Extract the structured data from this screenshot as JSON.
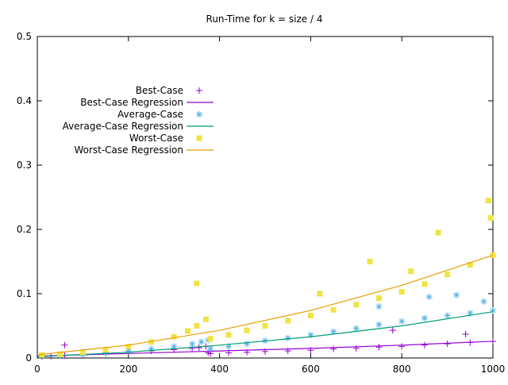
{
  "chart_data": {
    "type": "scatter",
    "title": "Run-Time for k = size / 4",
    "xlabel": "",
    "ylabel": "",
    "xlim": [
      0,
      1000
    ],
    "ylim": [
      0,
      0.5
    ],
    "x_ticks": [
      "0",
      "200",
      "400",
      "600",
      "800",
      "1000"
    ],
    "y_ticks": [
      "0",
      "0.1",
      "0.2",
      "0.3",
      "0.4",
      "0.5"
    ],
    "grid": false,
    "legend_position": "top-left",
    "series": [
      {
        "name": "Best-Case",
        "kind": "points",
        "marker": "plus",
        "color": "#9400d3",
        "x": [
          10,
          30,
          60,
          100,
          150,
          200,
          250,
          300,
          340,
          355,
          370,
          375,
          380,
          420,
          460,
          500,
          550,
          600,
          650,
          700,
          750,
          800,
          850,
          900,
          950,
          1000,
          60,
          780,
          940
        ],
        "y": [
          0.002,
          0.003,
          0.004,
          0.005,
          0.007,
          0.009,
          0.011,
          0.013,
          0.015,
          0.016,
          0.018,
          0.008,
          0.007,
          0.008,
          0.009,
          0.01,
          0.011,
          0.012,
          0.014,
          0.015,
          0.017,
          0.018,
          0.02,
          0.022,
          0.024,
          0.026,
          0.02,
          0.043,
          0.037
        ]
      },
      {
        "name": "Best-Case Regression",
        "kind": "line",
        "color": "#9400d3",
        "x": [
          0,
          200,
          400,
          600,
          800,
          1000
        ],
        "y": [
          0.003,
          0.007,
          0.011,
          0.015,
          0.02,
          0.026
        ]
      },
      {
        "name": "Average-Case",
        "kind": "points",
        "marker": "star",
        "color": "#56b4e9",
        "x": [
          10,
          50,
          100,
          150,
          200,
          250,
          300,
          340,
          360,
          375,
          380,
          420,
          460,
          500,
          550,
          600,
          650,
          700,
          750,
          800,
          850,
          900,
          950,
          1000,
          920,
          980,
          750,
          860
        ],
        "y": [
          0.003,
          0.004,
          0.006,
          0.008,
          0.011,
          0.014,
          0.018,
          0.022,
          0.025,
          0.028,
          0.015,
          0.018,
          0.022,
          0.027,
          0.031,
          0.036,
          0.041,
          0.046,
          0.052,
          0.057,
          0.062,
          0.066,
          0.07,
          0.074,
          0.098,
          0.088,
          0.08,
          0.095
        ]
      },
      {
        "name": "Average-Case Regression",
        "kind": "line",
        "color": "#009e73",
        "x": [
          0,
          200,
          400,
          600,
          800,
          1000
        ],
        "y": [
          0.002,
          0.009,
          0.02,
          0.033,
          0.05,
          0.072
        ]
      },
      {
        "name": "Worst-Case",
        "kind": "points",
        "marker": "square",
        "color": "#f0e442",
        "x": [
          10,
          50,
          100,
          150,
          200,
          250,
          300,
          330,
          350,
          370,
          380,
          420,
          460,
          500,
          550,
          600,
          650,
          700,
          750,
          800,
          850,
          900,
          950,
          1000,
          350,
          730,
          880,
          990,
          995,
          620,
          820
        ],
        "y": [
          0.005,
          0.006,
          0.009,
          0.013,
          0.018,
          0.025,
          0.033,
          0.042,
          0.05,
          0.06,
          0.03,
          0.036,
          0.043,
          0.05,
          0.058,
          0.066,
          0.075,
          0.083,
          0.093,
          0.103,
          0.115,
          0.13,
          0.145,
          0.16,
          0.116,
          0.15,
          0.195,
          0.245,
          0.218,
          0.1,
          0.135
        ]
      },
      {
        "name": "Worst-Case Regression",
        "kind": "line",
        "color": "#e69f00",
        "x": [
          0,
          200,
          400,
          600,
          800,
          1000
        ],
        "y": [
          0.005,
          0.02,
          0.043,
          0.074,
          0.113,
          0.16
        ]
      }
    ]
  }
}
